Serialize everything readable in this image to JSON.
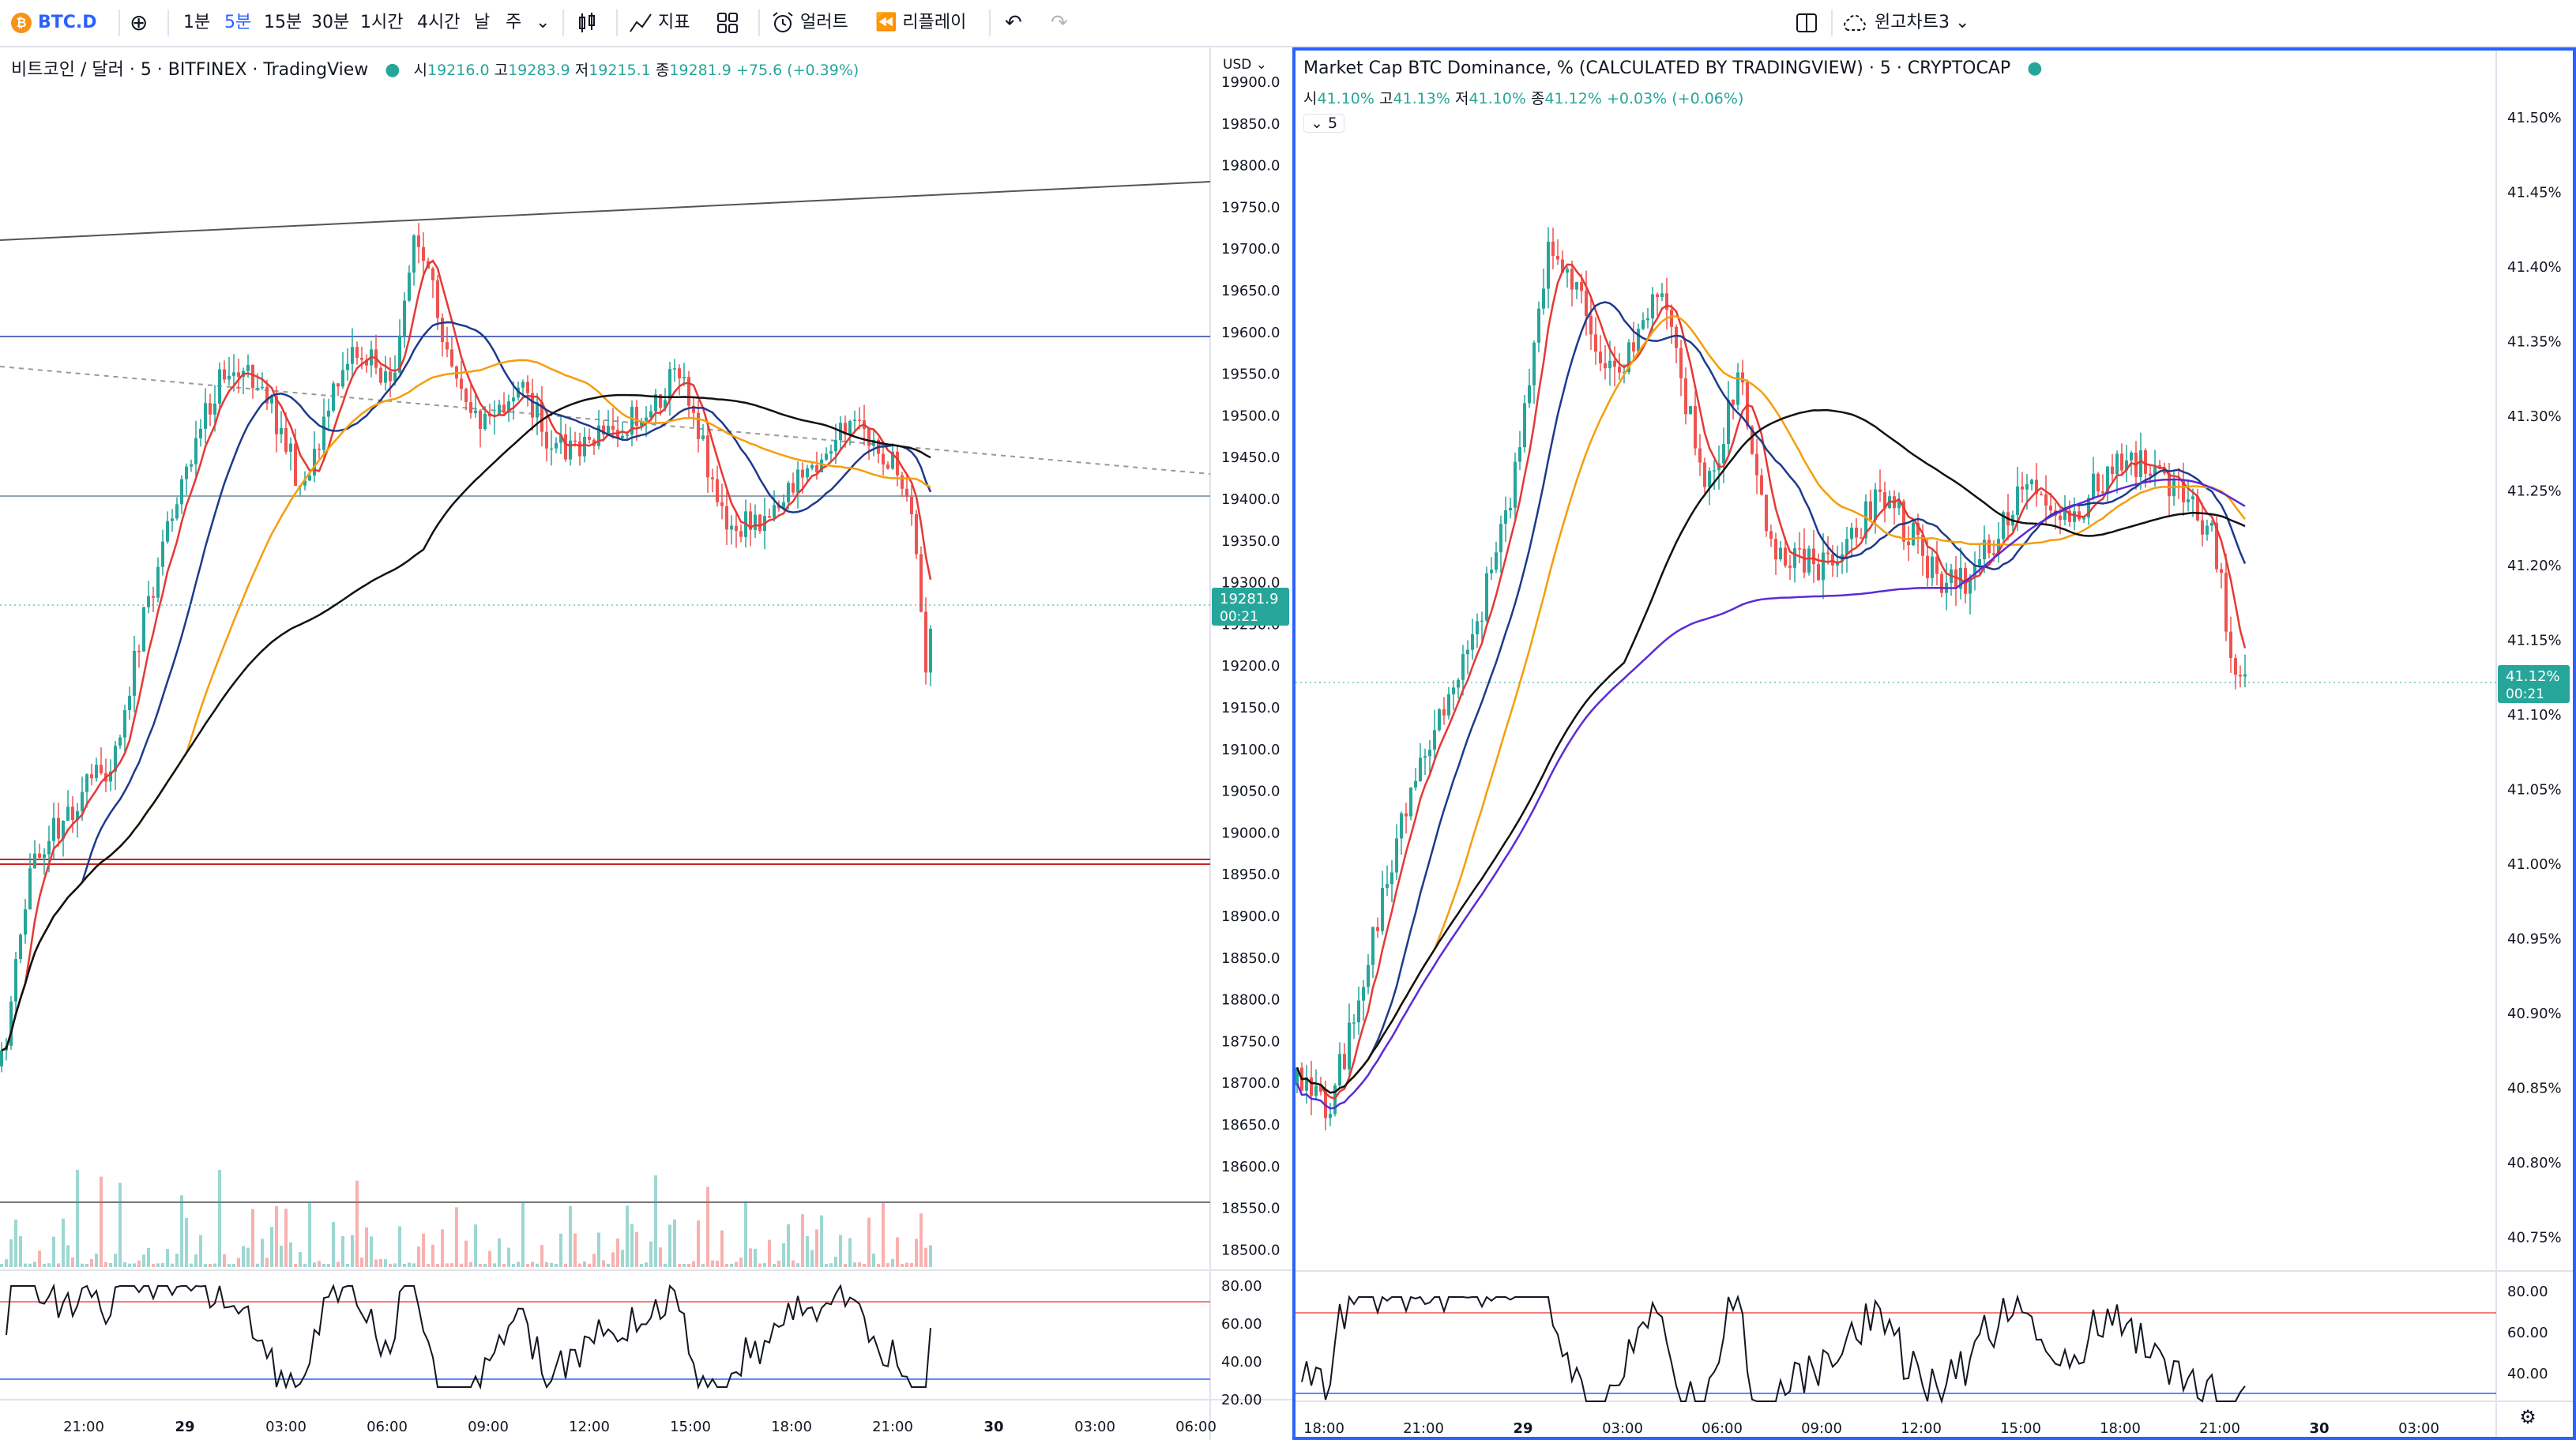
{
  "toolbar": {
    "symbol": "BTC.D",
    "symbol_icon": "bitcoin-logo-icon",
    "add_icon": "plus-circle-icon",
    "intervals": [
      "1분",
      "5분",
      "15분",
      "30분",
      "1시간",
      "4시간",
      "날",
      "주"
    ],
    "active_interval": "5분",
    "interval_dropdown_icon": "chevron-down-icon",
    "chart_type_icon": "candles-icon",
    "indicators_label": "지표",
    "templates_icon": "grid-icon",
    "alert_label": "얼러트",
    "replay_label": "리플레이",
    "undo_icon": "undo-icon",
    "redo_icon": "redo-icon",
    "layout_icon": "split-layout-icon",
    "cloud_label": "윈고차트3",
    "colors": {
      "accent": "#2962ff",
      "up": "#26a69a",
      "down": "#ef5350"
    }
  },
  "left_chart": {
    "title": "비트코인 / 달러 · 5 · BITFINEX · TradingView",
    "ohlc": {
      "open_label": "시",
      "open": "19216.0",
      "high_label": "고",
      "high": "19283.9",
      "low_label": "저",
      "low": "19215.1",
      "close_label": "종",
      "close": "19281.9",
      "change": "+75.6 (+0.39%)"
    },
    "currency": "USD",
    "price_badge": "19281.9",
    "countdown": "00:21",
    "price_ticks": [
      "19900.0",
      "19850.0",
      "19800.0",
      "19750.0",
      "19700.0",
      "19650.0",
      "19600.0",
      "19550.0",
      "19500.0",
      "19450.0",
      "19400.0",
      "19350.0",
      "19300.0",
      "19250.0",
      "19200.0",
      "19150.0",
      "19100.0",
      "19050.0",
      "19000.0",
      "18950.0",
      "18900.0",
      "18850.0",
      "18800.0",
      "18750.0",
      "18700.0",
      "18650.0",
      "18600.0",
      "18550.0",
      "18500.0"
    ],
    "rsi_ticks": [
      "80.00",
      "60.00",
      "40.00",
      "20.00"
    ],
    "time_ticks": [
      "21:00",
      "29",
      "03:00",
      "06:00",
      "09:00",
      "12:00",
      "15:00",
      "18:00",
      "21:00",
      "30",
      "03:00",
      "06:00"
    ]
  },
  "right_chart": {
    "title": "Market Cap BTC Dominance, % (CALCULATED BY TRADINGVIEW) · 5 · CRYPTOCAP",
    "ohlc": {
      "open_label": "시",
      "open": "41.10%",
      "high_label": "고",
      "high": "41.13%",
      "low_label": "저",
      "low": "41.10%",
      "close_label": "종",
      "close": "41.12%",
      "change": "+0.03% (+0.06%)"
    },
    "indicator_toggle": "5",
    "price_badge": "41.12%",
    "countdown": "00:21",
    "price_ticks": [
      "41.50%",
      "41.45%",
      "41.40%",
      "41.35%",
      "41.30%",
      "41.25%",
      "41.20%",
      "41.15%",
      "41.10%",
      "41.05%",
      "41.00%",
      "40.95%",
      "40.90%",
      "40.85%",
      "40.80%",
      "40.75%"
    ],
    "rsi_ticks": [
      "80.00",
      "60.00",
      "40.00"
    ],
    "time_ticks": [
      "18:00",
      "21:00",
      "29",
      "03:00",
      "06:00",
      "09:00",
      "12:00",
      "15:00",
      "18:00",
      "21:00",
      "30",
      "03:00"
    ]
  }
}
